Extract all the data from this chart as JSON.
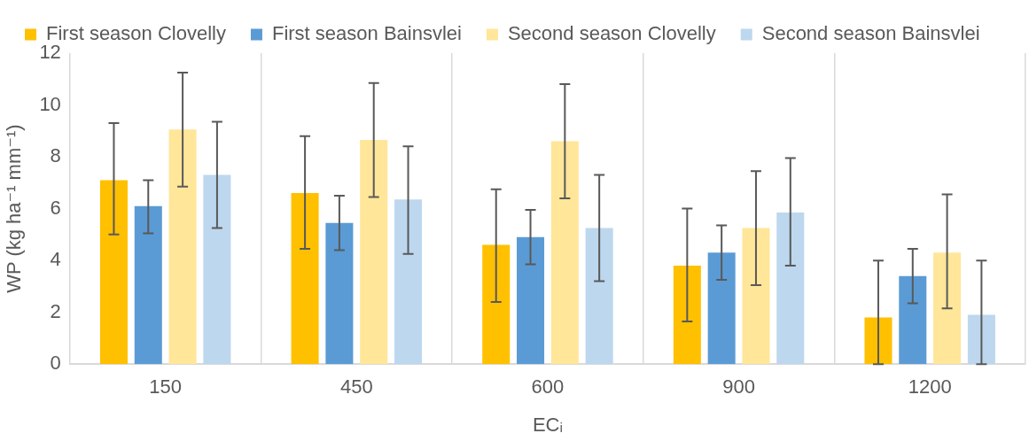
{
  "chart_data": {
    "type": "bar",
    "xlabel": "ECᵢ",
    "ylabel": "WP (kg ha⁻¹ mm⁻¹)",
    "categories": [
      "150",
      "450",
      "600",
      "900",
      "1200"
    ],
    "series": [
      {
        "name": "First season Clovelly",
        "color": "#ffc000",
        "values": [
          7.1,
          6.6,
          4.6,
          3.8,
          1.8
        ],
        "errors": [
          [
            5.0,
            9.3
          ],
          [
            4.45,
            8.8
          ],
          [
            2.4,
            6.75
          ],
          [
            1.65,
            6.0
          ],
          [
            0,
            4.0
          ]
        ]
      },
      {
        "name": "First season Bainsvlei",
        "color": "#5b9bd5",
        "values": [
          6.1,
          5.45,
          4.9,
          4.3,
          3.4
        ],
        "errors": [
          [
            5.05,
            7.1
          ],
          [
            4.4,
            6.5
          ],
          [
            3.85,
            5.95
          ],
          [
            3.25,
            5.35
          ],
          [
            2.35,
            4.45
          ]
        ]
      },
      {
        "name": "Second season Clovelly",
        "color": "#ffe699",
        "values": [
          9.05,
          8.65,
          8.6,
          5.25,
          4.3
        ],
        "errors": [
          [
            6.85,
            11.25
          ],
          [
            6.45,
            10.85
          ],
          [
            6.4,
            10.8
          ],
          [
            3.05,
            7.45
          ],
          [
            2.15,
            6.55
          ]
        ]
      },
      {
        "name": "Second season Bainsvlei",
        "color": "#bdd7ee",
        "values": [
          7.3,
          6.35,
          5.25,
          5.85,
          1.9
        ],
        "errors": [
          [
            5.25,
            9.35
          ],
          [
            4.25,
            8.4
          ],
          [
            3.2,
            7.3
          ],
          [
            3.8,
            7.95
          ],
          [
            0,
            4.0
          ]
        ]
      }
    ],
    "ylim": [
      0,
      12
    ],
    "yticks": [
      0,
      2,
      4,
      6,
      8,
      10,
      12
    ],
    "grid": "x",
    "legend": "top left"
  }
}
